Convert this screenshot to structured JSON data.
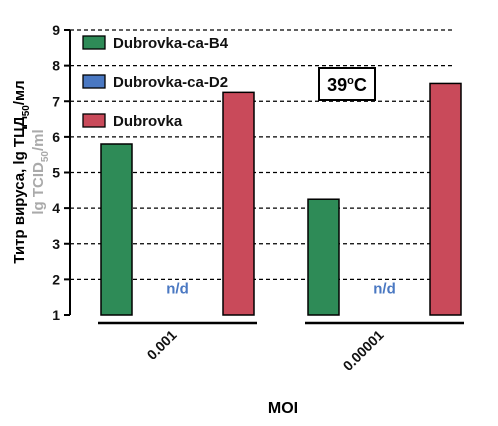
{
  "chart_data": {
    "type": "bar",
    "categories": [
      "0.001",
      "0.00001"
    ],
    "series": [
      {
        "name": "Dubrovka-ca-B4",
        "color": "#2e8b57",
        "values": [
          5.8,
          4.25
        ]
      },
      {
        "name": "Dubrovka-ca-D2",
        "color": "#4a78c2",
        "values": [
          null,
          null
        ]
      },
      {
        "name": "Dubrovka",
        "color": "#c94a5a",
        "values": [
          7.25,
          7.5
        ]
      }
    ],
    "missing_label": "n/d",
    "ylim": [
      1,
      9
    ],
    "yticks": [
      "1",
      "2",
      "3",
      "4",
      "5",
      "6",
      "7",
      "8",
      "9"
    ],
    "xlabel": "MOI",
    "ylabel": {
      "line1_main": "Титр вируса, lg ТЦД",
      "line1_sub": "50",
      "line1_unit": "/мл",
      "line2_main": "lg TCID",
      "line2_sub": "50",
      "line2_unit": "/ml"
    },
    "annotation": {
      "main": "39",
      "sup": "o",
      "unit": "C"
    },
    "grid": "horizontal dashed",
    "legend_position": "top-left"
  }
}
